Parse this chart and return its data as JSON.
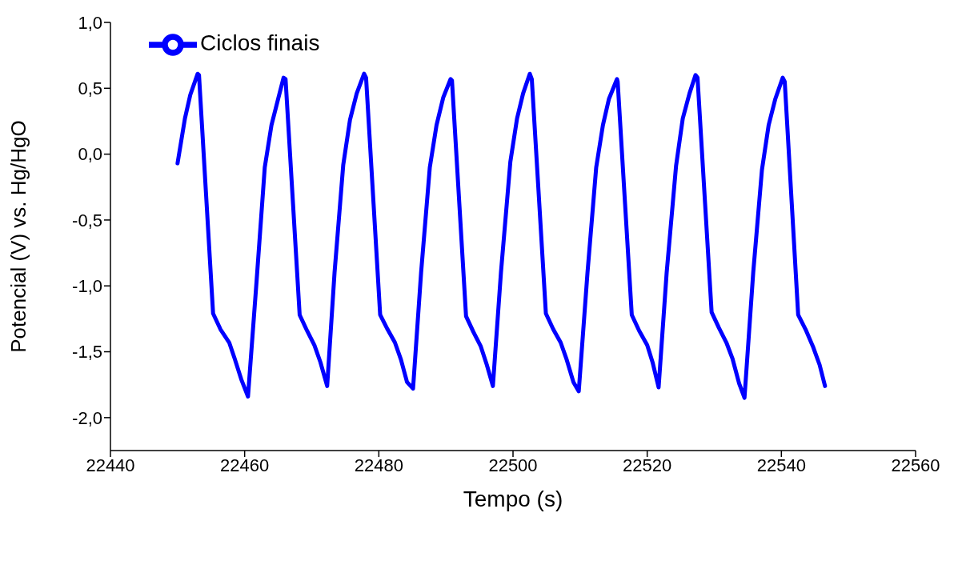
{
  "chart_data": {
    "type": "line",
    "xlabel": "Tempo (s)",
    "ylabel": "Potencial (V) vs. Hg/HgO",
    "xlim": [
      22440,
      22560
    ],
    "xticks": [
      22440,
      22460,
      22480,
      22500,
      22520,
      22540,
      22560
    ],
    "ylim": [
      -2.25,
      1.0
    ],
    "yticks": [
      {
        "value": 1.0,
        "label": "1,0"
      },
      {
        "value": 0.5,
        "label": "0,5"
      },
      {
        "value": 0.0,
        "label": "0,0"
      },
      {
        "value": -0.5,
        "label": "-0,5"
      },
      {
        "value": -1.0,
        "label": "-1,0"
      },
      {
        "value": -1.5,
        "label": "-1,5"
      },
      {
        "value": -2.0,
        "label": "-2,0"
      }
    ],
    "grid": false,
    "legend": "top left",
    "marker": "none",
    "line_style": "solid",
    "series": [
      {
        "name": "Ciclos finais",
        "color": "#0000ff",
        "x": [
          22450.0,
          22451.1,
          22451.9,
          22453.0,
          22453.2,
          22455.3,
          22456.4,
          22457.7,
          22458.5,
          22459.5,
          22460.5,
          22461.8,
          22463.0,
          22464.0,
          22465.0,
          22465.8,
          22466.1,
          22468.2,
          22469.3,
          22470.4,
          22471.3,
          22472.3,
          22473.4,
          22474.7,
          22475.7,
          22476.7,
          22477.8,
          22478.1,
          22480.2,
          22481.3,
          22482.4,
          22483.3,
          22484.2,
          22485.1,
          22486.3,
          22487.6,
          22488.6,
          22489.6,
          22490.7,
          22490.9,
          22493.0,
          22494.1,
          22495.2,
          22496.1,
          22497.0,
          22498.2,
          22499.6,
          22500.6,
          22501.5,
          22502.5,
          22502.8,
          22504.9,
          22506.0,
          22507.1,
          22508.0,
          22509.0,
          22509.8,
          22511.1,
          22512.4,
          22513.4,
          22514.3,
          22515.5,
          22515.6,
          22517.7,
          22518.8,
          22520.0,
          22520.8,
          22521.7,
          22522.9,
          22524.3,
          22525.3,
          22526.3,
          22527.2,
          22527.5,
          22529.6,
          22530.7,
          22531.8,
          22532.7,
          22533.7,
          22534.5,
          22535.8,
          22537.1,
          22538.1,
          22539.1,
          22540.2,
          22540.5,
          22542.5,
          22543.6,
          22544.7,
          22545.7,
          22546.5
        ],
        "values": [
          -0.07,
          0.27,
          0.45,
          0.61,
          0.6,
          -1.21,
          -1.33,
          -1.43,
          -1.55,
          -1.71,
          -1.84,
          -0.95,
          -0.1,
          0.22,
          0.42,
          0.58,
          0.57,
          -1.22,
          -1.34,
          -1.45,
          -1.58,
          -1.76,
          -0.9,
          -0.08,
          0.26,
          0.46,
          0.61,
          0.58,
          -1.22,
          -1.33,
          -1.43,
          -1.56,
          -1.73,
          -1.78,
          -0.9,
          -0.1,
          0.22,
          0.43,
          0.57,
          0.56,
          -1.23,
          -1.35,
          -1.46,
          -1.6,
          -1.76,
          -0.9,
          -0.06,
          0.27,
          0.46,
          0.61,
          0.57,
          -1.21,
          -1.33,
          -1.43,
          -1.56,
          -1.73,
          -1.8,
          -0.9,
          -0.1,
          0.22,
          0.42,
          0.57,
          0.55,
          -1.22,
          -1.34,
          -1.45,
          -1.58,
          -1.77,
          -0.9,
          -0.09,
          0.27,
          0.46,
          0.6,
          0.58,
          -1.2,
          -1.32,
          -1.43,
          -1.55,
          -1.74,
          -1.85,
          -0.9,
          -0.12,
          0.22,
          0.42,
          0.58,
          0.55,
          -1.22,
          -1.33,
          -1.46,
          -1.6,
          -1.76
        ]
      }
    ]
  }
}
